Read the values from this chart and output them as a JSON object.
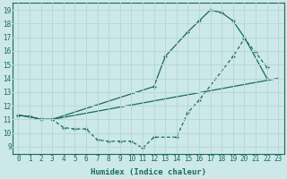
{
  "xlabel": "Humidex (Indice chaleur)",
  "xlim": [
    -0.5,
    23.5
  ],
  "ylim": [
    8.5,
    19.5
  ],
  "xticks": [
    0,
    1,
    2,
    3,
    4,
    5,
    6,
    7,
    8,
    9,
    10,
    11,
    12,
    13,
    14,
    15,
    16,
    17,
    18,
    19,
    20,
    21,
    22,
    23
  ],
  "yticks": [
    9,
    10,
    11,
    12,
    13,
    14,
    15,
    16,
    17,
    18,
    19
  ],
  "bg_color": "#cce8e8",
  "line_color": "#1a6b5a",
  "grid_color": "#b8d8d8",
  "line1_x": [
    0,
    1,
    2,
    3,
    12,
    13,
    15,
    16,
    17,
    18,
    19,
    20,
    22
  ],
  "line1_y": [
    11.3,
    11.2,
    11.0,
    11.0,
    13.4,
    15.6,
    17.4,
    18.2,
    19.0,
    18.8,
    18.2,
    17.0,
    14.0
  ],
  "line2_x": [
    0,
    1,
    2,
    3,
    23
  ],
  "line2_y": [
    11.3,
    11.2,
    11.0,
    11.0,
    14.0
  ],
  "line3_x": [
    0,
    1,
    2,
    3,
    4,
    5,
    6,
    7,
    8,
    9,
    10,
    11,
    12,
    14,
    15,
    16,
    19,
    20,
    21,
    22
  ],
  "line3_y": [
    11.3,
    11.2,
    11.0,
    11.0,
    10.4,
    10.3,
    10.3,
    9.5,
    9.4,
    9.4,
    9.4,
    8.9,
    9.7,
    9.7,
    11.5,
    12.4,
    15.6,
    16.9,
    15.9,
    14.8
  ]
}
